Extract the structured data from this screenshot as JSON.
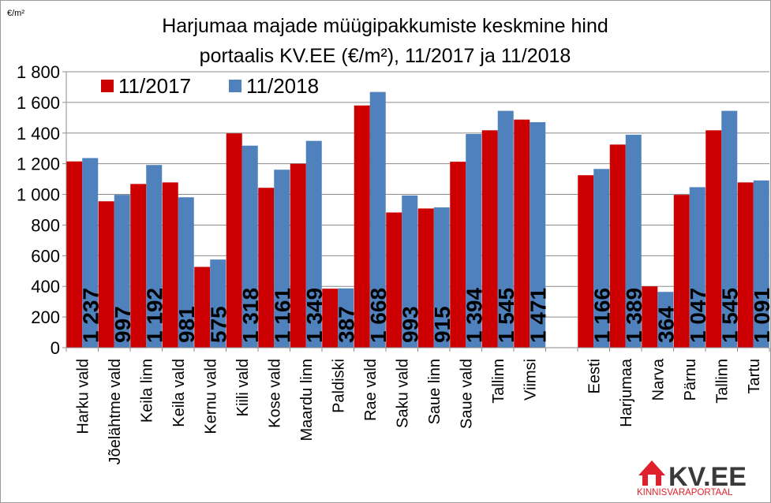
{
  "chart_data": {
    "type": "bar",
    "title": [
      "Harjumaa majade müügipakkumiste keskmine hind",
      "portaalis KV.EE (€/m²), 11/2017 ja 11/2018"
    ],
    "unit_label": "€/m²",
    "ylim": [
      0,
      1800
    ],
    "yticks": [
      0,
      200,
      400,
      600,
      800,
      1000,
      1200,
      1400,
      1600,
      1800
    ],
    "ytick_labels": [
      "0",
      "200",
      "400",
      "600",
      "800",
      "1 000",
      "1 200",
      "1 400",
      "1 600",
      "1 800"
    ],
    "grid": true,
    "legend_position": "top-left",
    "categories": [
      "Harku vald",
      "Jõelähtme vald",
      "Keila linn",
      "Keila vald",
      "Kernu vald",
      "Kiili vald",
      "Kose vald",
      "Maardu linn",
      "Paldiski",
      "Rae vald",
      "Saku vald",
      "Saue linn",
      "Saue vald",
      "Tallinn",
      "Viimsi",
      "",
      "Eesti",
      "Harjumaa",
      "Narva",
      "Pärnu",
      "Tallinn",
      "Tartu"
    ],
    "series": [
      {
        "name": "11/2017",
        "color": "#cc0000",
        "values": [
          1215,
          955,
          1068,
          1078,
          527,
          1398,
          1043,
          1200,
          385,
          1580,
          882,
          908,
          1213,
          1418,
          1488,
          null,
          1125,
          1325,
          400,
          997,
          1418,
          1078
        ]
      },
      {
        "name": "11/2018",
        "color": "#4f81bd",
        "values": [
          1237,
          997,
          1192,
          981,
          575,
          1318,
          1161,
          1349,
          387,
          1668,
          993,
          915,
          1394,
          1545,
          1471,
          null,
          1166,
          1389,
          364,
          1047,
          1545,
          1091
        ]
      }
    ],
    "data_labels": [
      "1 237",
      "997",
      "1 192",
      "981",
      "575",
      "1 318",
      "1 161",
      "1 349",
      "387",
      "1 668",
      "993",
      "915",
      "1 394",
      "1 545",
      "1 471",
      "",
      "1 166",
      "1 389",
      "364",
      "1 047",
      "1 545",
      "1 091"
    ]
  },
  "logo": {
    "text": "KV.EE",
    "subtext": "KINNISVARAPORTAAL",
    "color": "#e0212b"
  }
}
